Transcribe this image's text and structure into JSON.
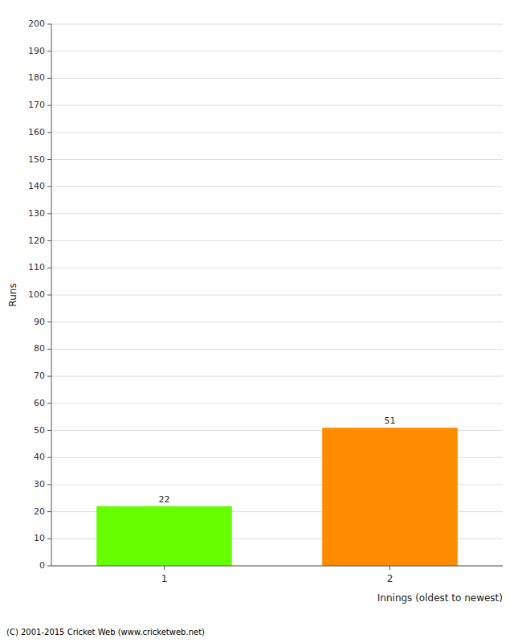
{
  "chart_data": {
    "type": "bar",
    "categories": [
      "1",
      "2"
    ],
    "values": [
      22,
      51
    ],
    "colors": [
      "#66ff00",
      "#ff8c00"
    ],
    "xlabel": "Innings (oldest to newest)",
    "ylabel": "Runs",
    "ylim": [
      0,
      200
    ],
    "yticks": [
      0,
      10,
      20,
      30,
      40,
      50,
      60,
      70,
      80,
      90,
      100,
      110,
      120,
      130,
      140,
      150,
      160,
      170,
      180,
      190,
      200
    ],
    "grid": true,
    "data_labels": true,
    "annotations": [
      "(C) 2001-2015 Cricket Web (www.cricketweb.net)"
    ]
  }
}
